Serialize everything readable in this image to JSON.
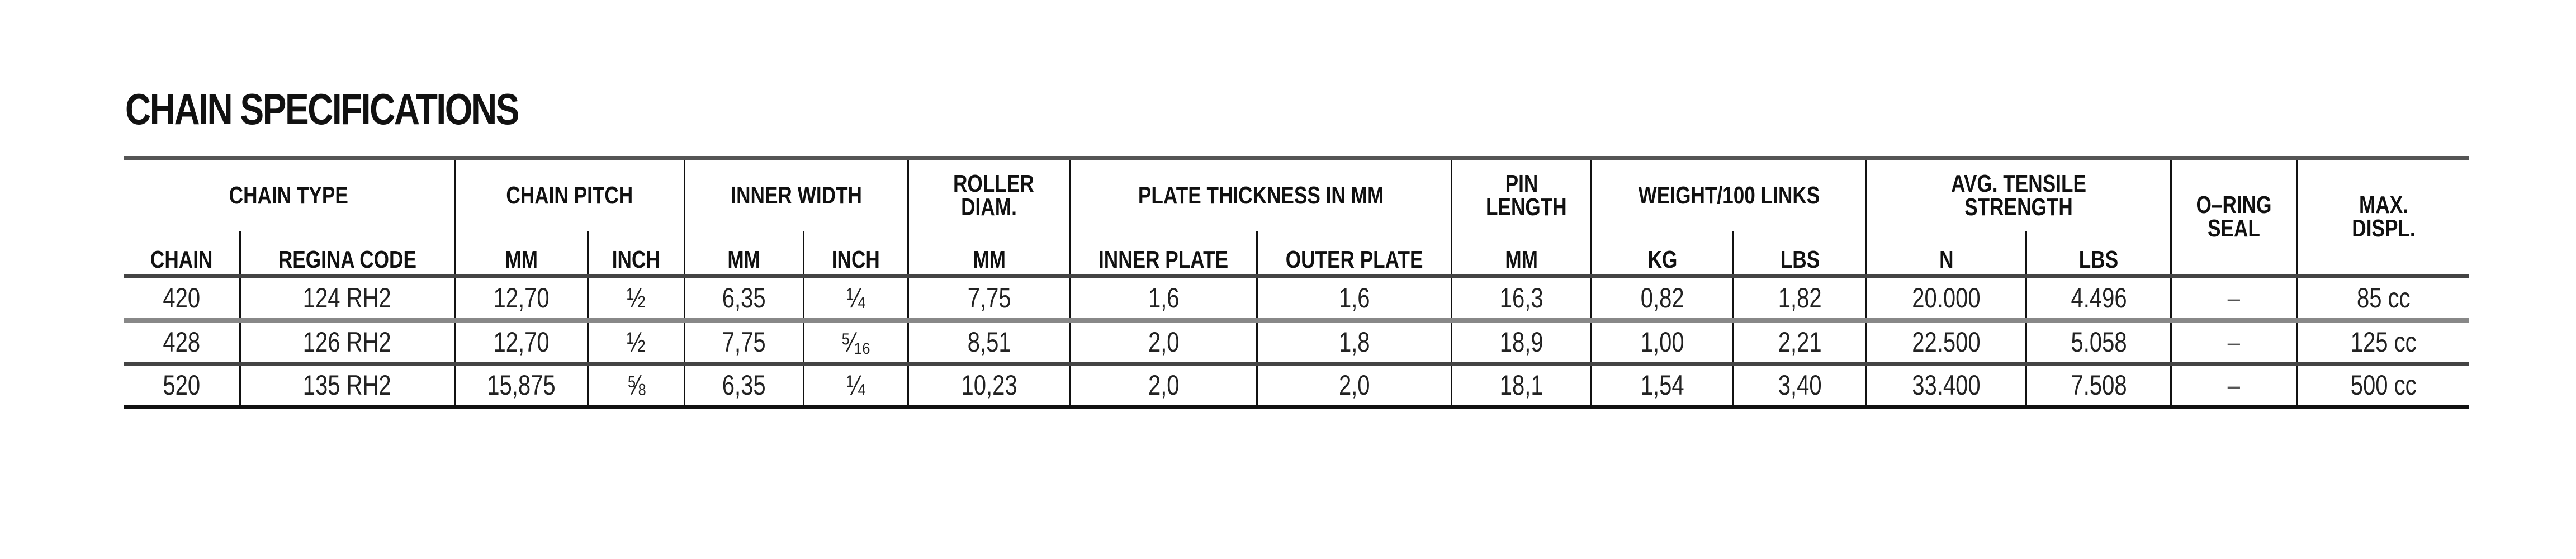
{
  "title": "CHAIN SPECIFICATIONS",
  "groups": {
    "chain_type": "CHAIN TYPE",
    "chain_pitch": "CHAIN PITCH",
    "inner_width": "INNER WIDTH",
    "roller_diam": "ROLLER DIAM.",
    "plate_thickness": "PLATE THICKNESS IN MM",
    "pin_length": "PIN LENGTH",
    "weight": "WEIGHT/100 LINKS",
    "tensile": "AVG. TENSILE STRENGTH",
    "oring": "O–RING SEAL",
    "max_displ": "MAX. DISPL."
  },
  "subheaders": [
    "CHAIN",
    "REGINA CODE",
    "MM",
    "INCH",
    "MM",
    "INCH",
    "MM",
    "INNER PLATE",
    "OUTER PLATE",
    "MM",
    "KG",
    "LBS",
    "N",
    "LBS"
  ],
  "rows": [
    [
      "420",
      "124 RH2",
      "12,70",
      "½",
      "6,35",
      "¼",
      "7,75",
      "1,6",
      "1,6",
      "16,3",
      "0,82",
      "1,82",
      "20.000",
      "4.496",
      "–",
      "85 cc"
    ],
    [
      "428",
      "126 RH2",
      "12,70",
      "½",
      "7,75",
      "⁵⁄₁₆",
      "8,51",
      "2,0",
      "1,8",
      "18,9",
      "1,00",
      "2,21",
      "22.500",
      "5.058",
      "–",
      "125 cc"
    ],
    [
      "520",
      "135 RH2",
      "15,875",
      "⅝",
      "6,35",
      "¼",
      "10,23",
      "2,0",
      "2,0",
      "18,1",
      "1,54",
      "3,40",
      "33.400",
      "7.508",
      "–",
      "500 cc"
    ]
  ]
}
